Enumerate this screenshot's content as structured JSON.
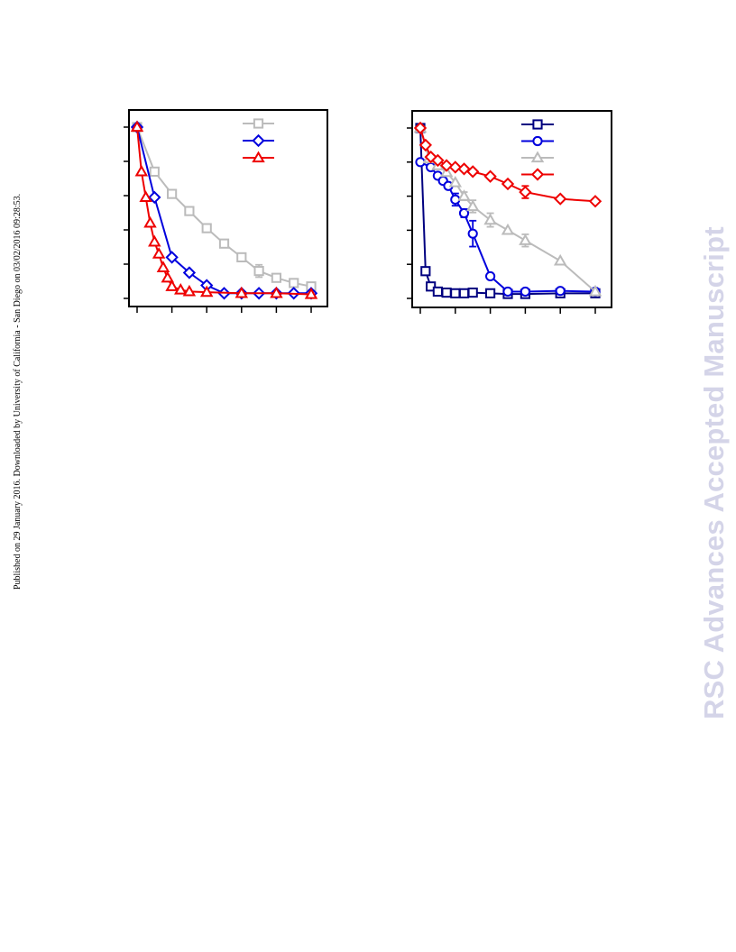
{
  "side_note": "Published on 29 January 2016. Downloaded by University of California - San Diego on 03/02/2016 09:28:53.",
  "watermark": "RSC Advances Accepted Manuscript",
  "chart_data": [
    {
      "type": "line",
      "xlim": [
        0,
        10
      ],
      "ylim": [
        0,
        5
      ],
      "x_ticks": [
        0,
        2,
        4,
        6,
        8,
        10
      ],
      "y_ticks": [
        0,
        1,
        2,
        3,
        4,
        5
      ],
      "legend_position": "top-right",
      "series": [
        {
          "color": "#bbbbbb",
          "marker": "square",
          "points": [
            [
              0,
              5
            ],
            [
              1,
              3.7
            ],
            [
              2,
              3.05
            ],
            [
              3,
              2.55
            ],
            [
              4,
              2.05
            ],
            [
              5,
              1.6
            ],
            [
              6,
              1.2
            ],
            [
              7,
              0.8
            ],
            [
              8,
              0.6
            ],
            [
              9,
              0.45
            ],
            [
              10,
              0.35
            ]
          ],
          "errors": [
            [
              2,
              0.1
            ],
            [
              7,
              0.18
            ]
          ]
        },
        {
          "color": "#0000dd",
          "marker": "diamond",
          "points": [
            [
              0,
              5
            ],
            [
              1,
              2.95
            ],
            [
              2,
              1.2
            ],
            [
              3,
              0.75
            ],
            [
              4,
              0.38
            ],
            [
              5,
              0.15
            ],
            [
              6,
              0.15
            ],
            [
              7,
              0.15
            ],
            [
              8,
              0.15
            ],
            [
              9,
              0.15
            ],
            [
              10,
              0.15
            ]
          ]
        },
        {
          "color": "#ee0000",
          "marker": "triangle",
          "points": [
            [
              0,
              5
            ],
            [
              0.25,
              3.7
            ],
            [
              0.5,
              2.95
            ],
            [
              0.75,
              2.2
            ],
            [
              1,
              1.65
            ],
            [
              1.25,
              1.3
            ],
            [
              1.5,
              0.9
            ],
            [
              1.75,
              0.6
            ],
            [
              2,
              0.35
            ],
            [
              2.5,
              0.25
            ],
            [
              3,
              0.2
            ],
            [
              4,
              0.18
            ],
            [
              6,
              0.15
            ],
            [
              8,
              0.15
            ],
            [
              10,
              0.12
            ]
          ]
        }
      ]
    },
    {
      "type": "line",
      "xlim": [
        0,
        10
      ],
      "ylim": [
        0,
        5
      ],
      "x_ticks": [
        0,
        2,
        4,
        6,
        8,
        10
      ],
      "y_ticks": [
        0,
        1,
        2,
        3,
        4,
        5
      ],
      "legend_position": "top-right",
      "series": [
        {
          "color": "#000080",
          "marker": "square",
          "points": [
            [
              0,
              5
            ],
            [
              0.3,
              0.8
            ],
            [
              0.6,
              0.35
            ],
            [
              1,
              0.2
            ],
            [
              1.5,
              0.17
            ],
            [
              2,
              0.15
            ],
            [
              2.5,
              0.15
            ],
            [
              3,
              0.17
            ],
            [
              4,
              0.15
            ],
            [
              5,
              0.13
            ],
            [
              6,
              0.13
            ],
            [
              8,
              0.15
            ],
            [
              10,
              0.15
            ]
          ]
        },
        {
          "color": "#0000dd",
          "marker": "circle",
          "points": [
            [
              0,
              4
            ],
            [
              0.6,
              3.85
            ],
            [
              1,
              3.6
            ],
            [
              1.3,
              3.45
            ],
            [
              1.6,
              3.3
            ],
            [
              2,
              2.9
            ],
            [
              2.5,
              2.5
            ],
            [
              3,
              1.9
            ],
            [
              4,
              0.65
            ],
            [
              5,
              0.2
            ],
            [
              6,
              0.2
            ],
            [
              8,
              0.22
            ],
            [
              10,
              0.2
            ]
          ],
          "errors": [
            [
              2,
              0.18
            ],
            [
              2.5,
              0.12
            ],
            [
              3,
              0.38
            ]
          ]
        },
        {
          "color": "#bbbbbb",
          "marker": "triangle",
          "points": [
            [
              0,
              5
            ],
            [
              0.5,
              4.1
            ],
            [
              1,
              3.9
            ],
            [
              1.5,
              3.7
            ],
            [
              2,
              3.4
            ],
            [
              2.5,
              3
            ],
            [
              3,
              2.7
            ],
            [
              4,
              2.3
            ],
            [
              5,
              2
            ],
            [
              6,
              1.7
            ],
            [
              8,
              1.1
            ],
            [
              10,
              0.2
            ]
          ],
          "errors": [
            [
              2.5,
              0.12
            ],
            [
              3,
              0.18
            ],
            [
              4,
              0.2
            ],
            [
              6,
              0.18
            ]
          ]
        },
        {
          "color": "#ee0000",
          "marker": "diamond",
          "points": [
            [
              0,
              5
            ],
            [
              0.3,
              4.5
            ],
            [
              0.6,
              4.15
            ],
            [
              1,
              4.05
            ],
            [
              1.5,
              3.9
            ],
            [
              2,
              3.85
            ],
            [
              2.5,
              3.8
            ],
            [
              3,
              3.72
            ],
            [
              4,
              3.58
            ],
            [
              5,
              3.36
            ],
            [
              6,
              3.12
            ],
            [
              8,
              2.92
            ],
            [
              10,
              2.85
            ]
          ],
          "errors": [
            [
              6,
              0.18
            ]
          ]
        }
      ]
    }
  ]
}
